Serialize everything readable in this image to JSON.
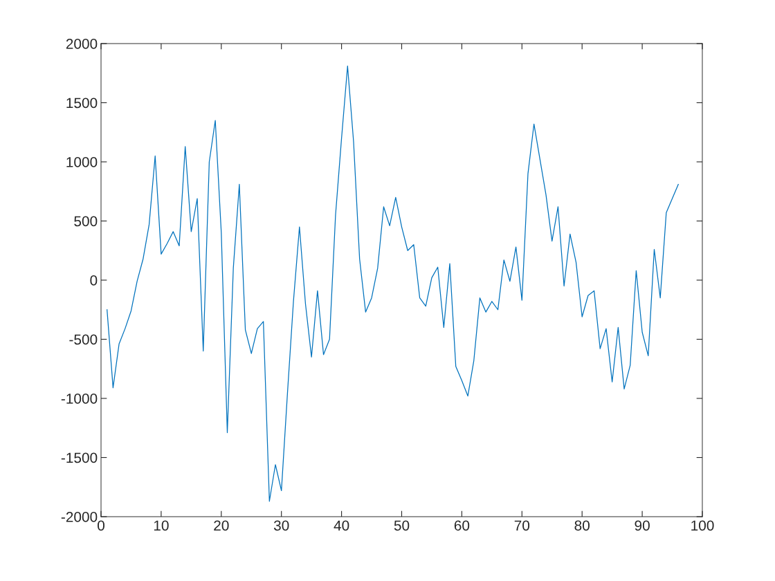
{
  "chart_data": {
    "type": "line",
    "x": [
      1,
      2,
      3,
      4,
      5,
      6,
      7,
      8,
      9,
      10,
      11,
      12,
      13,
      14,
      15,
      16,
      17,
      18,
      19,
      20,
      21,
      22,
      23,
      24,
      25,
      26,
      27,
      28,
      29,
      30,
      31,
      32,
      33,
      34,
      35,
      36,
      37,
      38,
      39,
      40,
      41,
      42,
      43,
      44,
      45,
      46,
      47,
      48,
      49,
      50,
      51,
      52,
      53,
      54,
      55,
      56,
      57,
      58,
      59,
      60,
      61,
      62,
      63,
      64,
      65,
      66,
      67,
      68,
      69,
      70,
      71,
      72,
      73,
      74,
      75,
      76,
      77,
      78,
      79,
      80,
      81,
      82,
      83,
      84,
      85,
      86,
      87,
      88,
      89,
      90,
      91,
      92,
      93,
      94,
      95,
      96
    ],
    "series": [
      {
        "color": "#0072bd",
        "values": [
          -250,
          -910,
          -540,
          -410,
          -260,
          -10,
          180,
          470,
          1050,
          220,
          310,
          410,
          290,
          1130,
          410,
          690,
          -600,
          1000,
          1350,
          400,
          -1290,
          100,
          810,
          -420,
          -620,
          -410,
          -350,
          -1870,
          -1560,
          -1780,
          -960,
          -180,
          450,
          -200,
          -650,
          -90,
          -630,
          -500,
          550,
          1200,
          1810,
          1170,
          180,
          -270,
          -150,
          100,
          620,
          460,
          700,
          450,
          250,
          300,
          -150,
          -220,
          20,
          110,
          -400,
          140,
          -730,
          -850,
          -980,
          -680,
          -150,
          -270,
          -180,
          -250,
          170,
          -10,
          280,
          -170,
          900,
          1320,
          1020,
          720,
          330,
          620,
          -50,
          390,
          150,
          -310,
          -130,
          -90,
          -580,
          -410,
          -860,
          -400,
          -920,
          -720,
          80,
          -440,
          -640,
          260,
          -150,
          570,
          690,
          810
        ]
      }
    ],
    "xlim": [
      0,
      100
    ],
    "xticks": [
      0,
      10,
      20,
      30,
      40,
      50,
      60,
      70,
      80,
      90,
      100
    ],
    "ylim": [
      -2000,
      2000
    ],
    "yticks": [
      -2000,
      -1500,
      -1000,
      -500,
      0,
      500,
      1000,
      1500,
      2000
    ],
    "grid": false,
    "legend": false,
    "marker": "none",
    "line_style": "solid"
  }
}
